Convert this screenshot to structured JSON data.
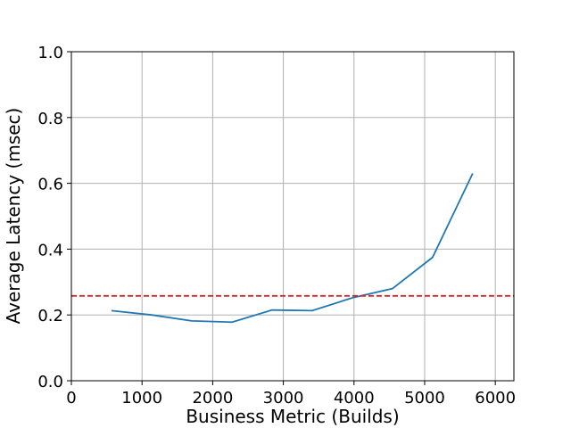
{
  "chart_data": {
    "type": "line",
    "xlabel": "Business Metric (Builds)",
    "ylabel": "Average Latency (msec)",
    "x": [
      568,
      1136,
      1704,
      2272,
      2840,
      3408,
      3976,
      4544,
      5112,
      5680
    ],
    "series": [
      {
        "color": "#1f77b4",
        "values": [
          0.213,
          0.2,
          0.182,
          0.178,
          0.215,
          0.213,
          0.252,
          0.28,
          0.375,
          0.63
        ]
      }
    ],
    "reference_line": {
      "value": 0.258,
      "color": "#d62728",
      "dashed": true
    },
    "xlim": [
      0,
      6263
    ],
    "ylim": [
      0,
      1
    ],
    "xticks": [
      0,
      1000,
      2000,
      3000,
      4000,
      5000,
      6000
    ],
    "yticks": [
      {
        "value": 0,
        "label": "0.0"
      },
      0.2,
      0.4,
      0.6,
      0.8,
      {
        "value": 1,
        "label": "1.0"
      }
    ],
    "grid": true
  }
}
